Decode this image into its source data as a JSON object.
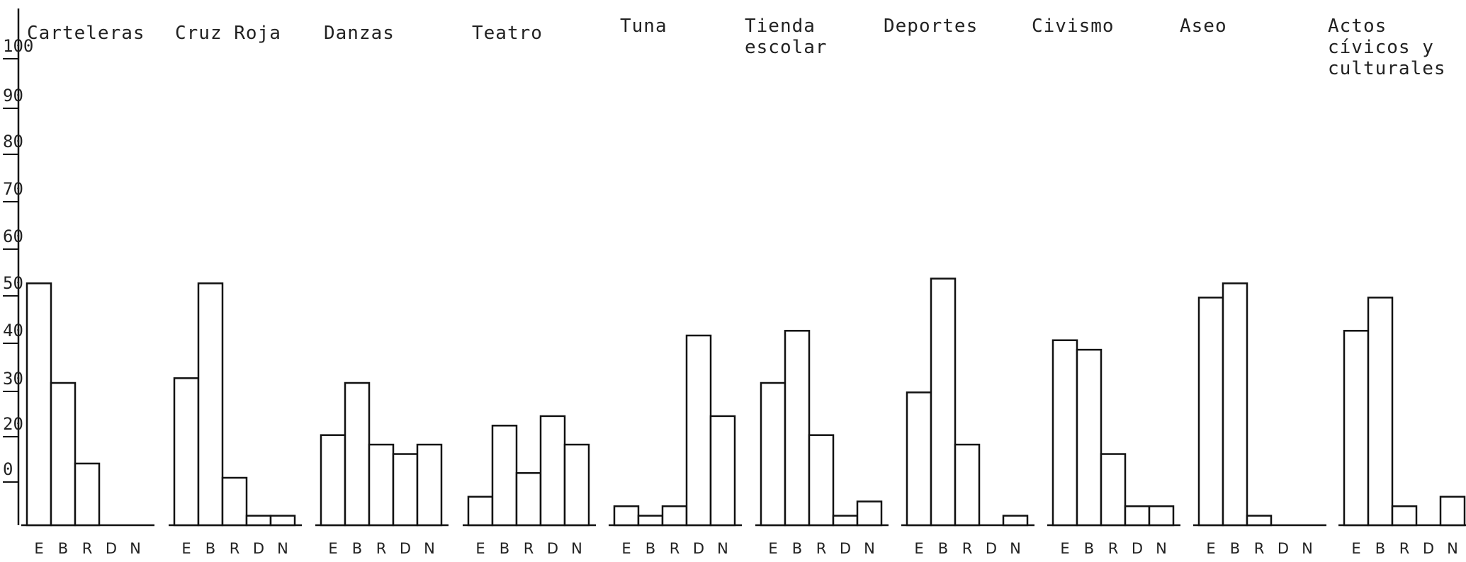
{
  "chart_data": {
    "type": "bar",
    "y_ticks": [
      "0",
      "20",
      "30",
      "40",
      "50",
      "60",
      "70",
      "80",
      "90",
      "100"
    ],
    "y_tick_display": [
      "0",
      "20",
      "30",
      "40",
      "50",
      "60",
      "70",
      "80",
      "90",
      "100"
    ],
    "categories": [
      "E",
      "B",
      "R",
      "D",
      "N"
    ],
    "ylim": [
      0,
      100
    ],
    "grid": false,
    "groups": [
      {
        "title": [
          "Carteleras"
        ],
        "values": [
          51,
          30,
          13,
          0,
          0
        ]
      },
      {
        "title": [
          "Cruz Roja"
        ],
        "values": [
          31,
          51,
          10,
          2,
          2
        ]
      },
      {
        "title": [
          "Danzas"
        ],
        "values": [
          19,
          30,
          17,
          15,
          17
        ]
      },
      {
        "title": [
          "Teatro"
        ],
        "values": [
          6,
          21,
          11,
          23,
          17
        ]
      },
      {
        "title": [
          "Tuna"
        ],
        "values": [
          4,
          2,
          4,
          40,
          23
        ]
      },
      {
        "title": [
          "Tienda",
          "escolar"
        ],
        "values": [
          30,
          41,
          19,
          2,
          5
        ]
      },
      {
        "title": [
          "Deportes"
        ],
        "values": [
          28,
          52,
          17,
          0,
          2
        ]
      },
      {
        "title": [
          "Civismo"
        ],
        "values": [
          39,
          37,
          15,
          4,
          4
        ]
      },
      {
        "title": [
          "Aseo"
        ],
        "values": [
          48,
          51,
          2,
          0,
          0
        ]
      },
      {
        "title": [
          "Actos",
          "cívicos y",
          "culturales"
        ],
        "values": [
          41,
          48,
          4,
          0,
          6
        ]
      }
    ]
  }
}
